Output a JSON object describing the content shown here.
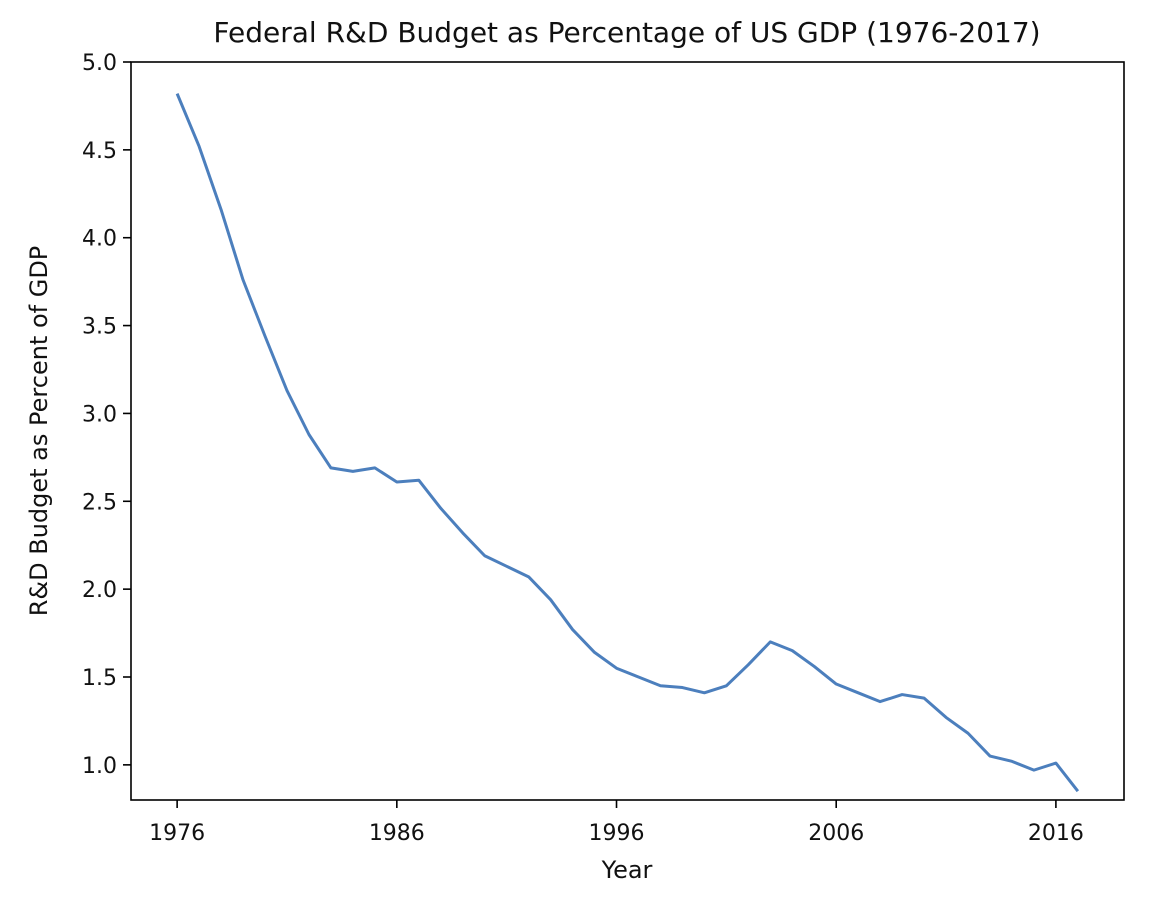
{
  "chart_data": {
    "type": "line",
    "title": "Federal R&D Budget as Percentage of US GDP (1976-2017)",
    "xlabel": "Year",
    "ylabel": "R&D Budget as Percent of GDP",
    "xlim": [
      1973.9,
      2019.1
    ],
    "ylim": [
      0.8,
      5.0
    ],
    "x_ticks": [
      1976,
      1986,
      1996,
      2006,
      2016
    ],
    "y_ticks": [
      1.0,
      1.5,
      2.0,
      2.5,
      3.0,
      3.5,
      4.0,
      4.5,
      5.0
    ],
    "y_tick_labels": [
      "1.0",
      "1.5",
      "2.0",
      "2.5",
      "3.0",
      "3.5",
      "4.0",
      "4.5",
      "5.0"
    ],
    "grid": false,
    "series": [
      {
        "color": "#4c7fbd",
        "x": [
          1976,
          1977,
          1978,
          1979,
          1980,
          1981,
          1982,
          1983,
          1984,
          1985,
          1986,
          1987,
          1988,
          1989,
          1990,
          1991,
          1992,
          1993,
          1994,
          1995,
          1996,
          1997,
          1998,
          1999,
          2000,
          2001,
          2002,
          2003,
          2004,
          2005,
          2006,
          2007,
          2008,
          2009,
          2010,
          2011,
          2012,
          2013,
          2014,
          2015,
          2016,
          2017
        ],
        "values": [
          4.82,
          4.52,
          4.16,
          3.76,
          3.44,
          3.13,
          2.88,
          2.69,
          2.67,
          2.69,
          2.61,
          2.62,
          2.46,
          2.32,
          2.19,
          2.13,
          2.07,
          1.94,
          1.77,
          1.64,
          1.55,
          1.5,
          1.45,
          1.44,
          1.41,
          1.45,
          1.57,
          1.7,
          1.65,
          1.56,
          1.46,
          1.41,
          1.36,
          1.4,
          1.38,
          1.27,
          1.18,
          1.05,
          1.02,
          0.97,
          1.01,
          0.85
        ]
      }
    ]
  }
}
